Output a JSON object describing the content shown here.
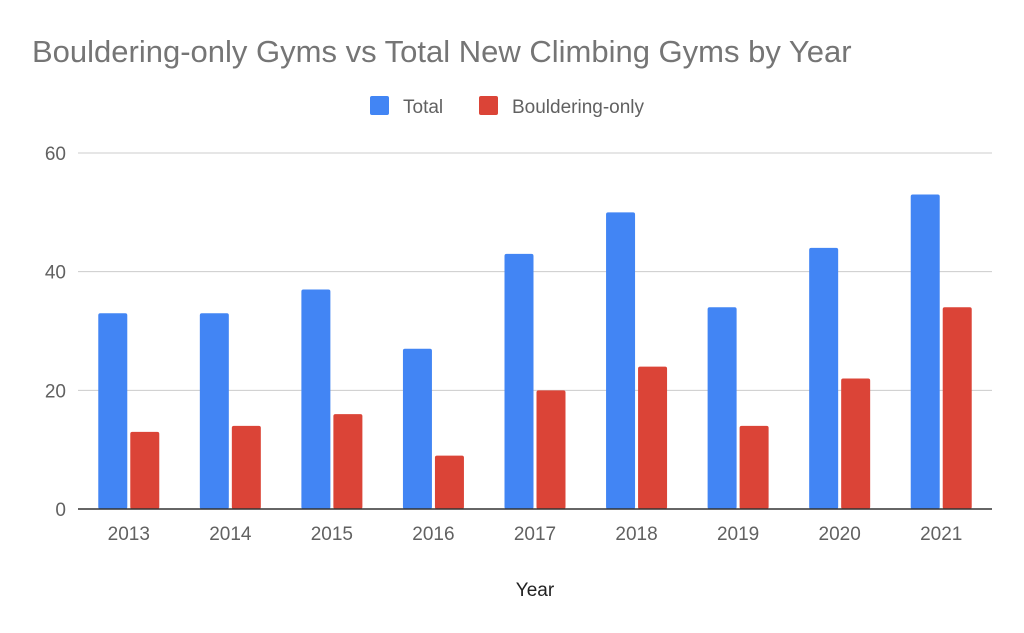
{
  "chart_data": {
    "type": "bar",
    "title": "Bouldering-only Gyms vs Total New Climbing Gyms by Year",
    "xlabel": "Year",
    "ylabel": "",
    "categories": [
      "2013",
      "2014",
      "2015",
      "2016",
      "2017",
      "2018",
      "2019",
      "2020",
      "2021"
    ],
    "series": [
      {
        "name": "Total",
        "color": "#4285f4",
        "values": [
          33,
          33,
          37,
          27,
          43,
          50,
          34,
          44,
          53
        ]
      },
      {
        "name": "Bouldering-only",
        "color": "#db4437",
        "values": [
          13,
          14,
          16,
          9,
          20,
          24,
          14,
          22,
          34
        ]
      }
    ],
    "ylim": [
      0,
      60
    ],
    "yticks": [
      "0",
      "20",
      "40",
      "60"
    ],
    "grid": true,
    "legend_position": "top-center"
  }
}
